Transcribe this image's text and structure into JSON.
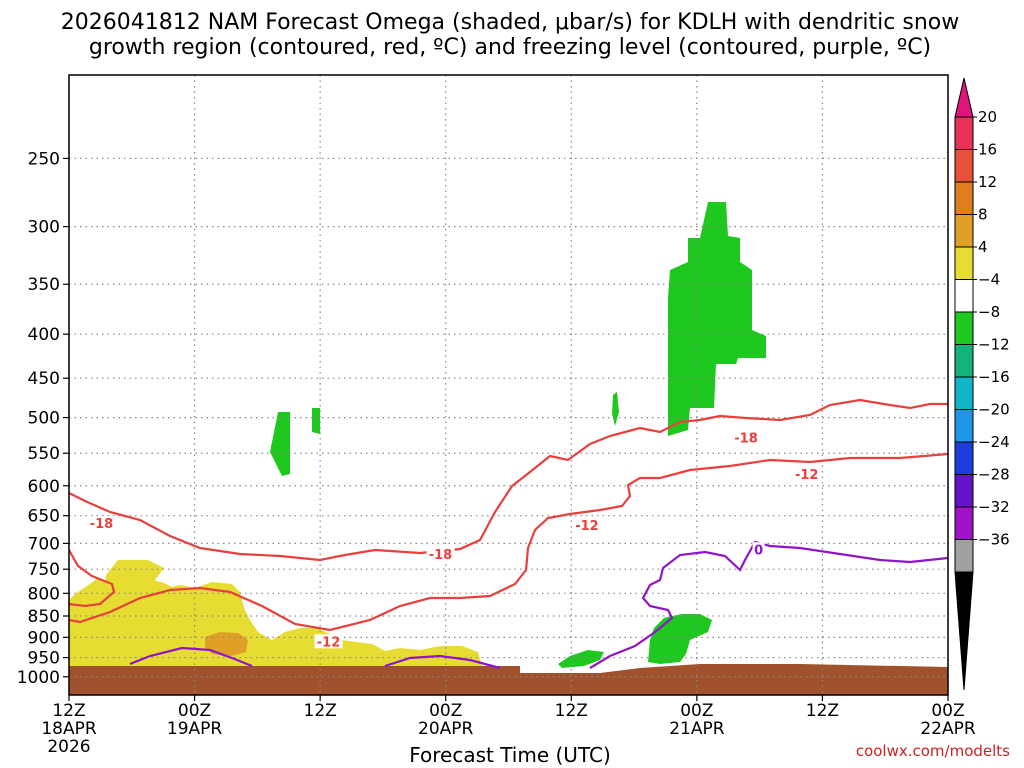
{
  "chart_data": {
    "type": "heatmap",
    "title_line1": "2026041812 NAM Forecast Omega (shaded, μbar/s) for KDLH with dendritic snow",
    "title_line2": "growth region (contoured, red, ºC) and freezing level (contoured, purple, ºC)",
    "xlabel": "Forecast Time (UTC)",
    "credit": "coolwx.com/modelts",
    "x_ticks": [
      {
        "h": 0,
        "line1": "12Z",
        "line2": "18APR",
        "line3": "2026"
      },
      {
        "h": 12,
        "line1": "00Z",
        "line2": "19APR",
        "line3": ""
      },
      {
        "h": 24,
        "line1": "12Z",
        "line2": "",
        "line3": ""
      },
      {
        "h": 36,
        "line1": "00Z",
        "line2": "20APR",
        "line3": ""
      },
      {
        "h": 48,
        "line1": "12Z",
        "line2": "",
        "line3": ""
      },
      {
        "h": 60,
        "line1": "00Z",
        "line2": "21APR",
        "line3": ""
      },
      {
        "h": 72,
        "line1": "12Z",
        "line2": "",
        "line3": ""
      },
      {
        "h": 84,
        "line1": "00Z",
        "line2": "22APR",
        "line3": ""
      }
    ],
    "xlim": [
      0,
      84
    ],
    "y_ticks": [
      250,
      300,
      350,
      400,
      450,
      500,
      550,
      600,
      650,
      700,
      750,
      800,
      850,
      900,
      950,
      1000
    ],
    "ylim": [
      200,
      1050
    ],
    "y_scale": "log-pressure",
    "grid": true,
    "colorbar": {
      "labels": [
        "20",
        "16",
        "12",
        "8",
        "4",
        "−4",
        "−8",
        "−12",
        "−16",
        "−20",
        "−24",
        "−28",
        "−32",
        "−36"
      ],
      "colors": [
        "#e8325a",
        "#e8503a",
        "#e07d1e",
        "#e0a028",
        "#e8dc32",
        "#ffffff",
        "#1ec81e",
        "#14b478",
        "#14b4c8",
        "#1e96e6",
        "#1e3cdc",
        "#6414c8",
        "#a014c8",
        "#a0a0a0"
      ],
      "top_arrow_color": "#e0147a",
      "bottom_arrow_color": "#000000"
    },
    "contour_labels": [
      {
        "text": "-18",
        "color": "#e8403c",
        "h": 3.1,
        "p": 665
      },
      {
        "text": "-18",
        "color": "#e8403c",
        "h": 35.5,
        "p": 722
      },
      {
        "text": "-18",
        "color": "#e8403c",
        "h": 64.7,
        "p": 529
      },
      {
        "text": "-12",
        "color": "#e8403c",
        "h": 24.8,
        "p": 912
      },
      {
        "text": "-12",
        "color": "#e8403c",
        "h": 49.5,
        "p": 668
      },
      {
        "text": "-12",
        "color": "#e8403c",
        "h": 70.5,
        "p": 583
      },
      {
        "text": "0",
        "color": "#9014c8",
        "h": 65.9,
        "p": 713
      }
    ]
  }
}
